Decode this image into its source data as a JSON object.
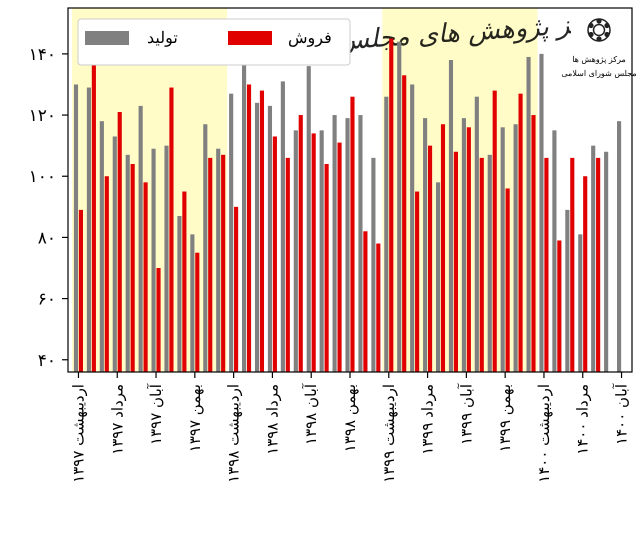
{
  "chart_data": {
    "type": "bar",
    "title": "",
    "xlabel": "",
    "ylabel": "",
    "ylim": [
      36,
      155
    ],
    "y_ticks": [
      40,
      60,
      80,
      100,
      120,
      140
    ],
    "y_tick_labels": [
      "۴۰",
      "۶۰",
      "۸۰",
      "۱۰۰",
      "۱۲۰",
      "۱۴۰"
    ],
    "grid": false,
    "legend_position": "top-left",
    "x_tick_labels": [
      "اردیبهشت ۱۳۹۷",
      "مرداد ۱۳۹۷",
      "آبان ۱۳۹۷",
      "بهمن ۱۳۹۷",
      "اردیبهشت ۱۳۹۸",
      "مرداد ۱۳۹۸",
      "آبان ۱۳۹۸",
      "بهمن ۱۳۹۸",
      "اردیبهشت ۱۳۹۹",
      "مرداد ۱۳۹۹",
      "آبان ۱۳۹۹",
      "بهمن ۱۳۹۹",
      "اردیبهشت ۱۴۰۰",
      "مرداد ۱۴۰۰",
      "آبان ۱۴۰۰"
    ],
    "tick_month_index": [
      0,
      3,
      6,
      9,
      12,
      15,
      18,
      21,
      24,
      27,
      30,
      33,
      36,
      39,
      42
    ],
    "shaded_ranges": [
      [
        -0.5,
        11.5
      ],
      [
        23.5,
        35.5
      ]
    ],
    "shade_color": "#fffcc8",
    "series": [
      {
        "name": "تولید",
        "color": "#808080",
        "values": [
          130,
          129,
          118,
          113,
          107,
          123,
          109,
          110,
          87,
          81,
          117,
          109,
          127,
          139,
          124,
          123,
          131,
          115,
          136,
          115,
          120,
          119,
          120,
          106,
          126,
          144,
          130,
          119,
          98,
          138,
          119,
          126,
          107,
          116,
          117,
          139,
          140,
          115,
          89,
          81,
          110,
          108,
          118
        ]
      },
      {
        "name": "فروش",
        "color": "#e00000",
        "values": [
          89,
          137,
          100,
          121,
          104,
          98,
          70,
          129,
          95,
          75,
          106,
          107,
          90,
          130,
          128,
          113,
          106,
          120,
          114,
          104,
          111,
          126,
          82,
          78,
          145,
          133,
          95,
          110,
          117,
          108,
          116,
          106,
          128,
          96,
          127,
          120,
          106,
          79,
          106,
          100,
          106
        ]
      }
    ]
  },
  "watermark": {
    "text": "مرکز پژوهش های مجلس",
    "logo_lines": [
      "مرکز پژوهش ها",
      "مجلس شورای اسلامی"
    ]
  },
  "colors": {
    "axis": "#000000",
    "gridline": "#bbbbbb",
    "watermark": "#c8c8c8"
  }
}
